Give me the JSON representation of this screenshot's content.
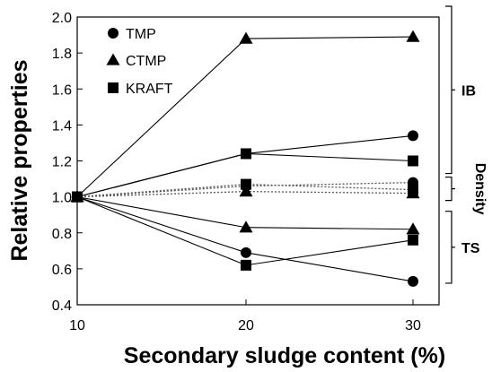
{
  "chart_data": {
    "type": "line",
    "xlabel": "Secondary sludge content (%)",
    "ylabel": "Relative properties",
    "xlim": [
      10,
      30
    ],
    "ylim": [
      0.4,
      2.0
    ],
    "x_ticks": [
      "10",
      "20",
      "30"
    ],
    "y_ticks": [
      "0.4",
      "0.6",
      "0.8",
      "1.0",
      "1.2",
      "1.4",
      "1.6",
      "1.8",
      "2.0"
    ],
    "x": [
      10,
      20,
      30
    ],
    "legend": [
      {
        "label": "TMP",
        "marker": "circle"
      },
      {
        "label": "CTMP",
        "marker": "triangle"
      },
      {
        "label": "KRAFT",
        "marker": "square"
      }
    ],
    "series": [
      {
        "property": "IB",
        "pulp": "TMP",
        "marker": "circle",
        "style": "solid",
        "values": [
          1.0,
          1.24,
          1.34
        ]
      },
      {
        "property": "IB",
        "pulp": "CTMP",
        "marker": "triangle",
        "style": "solid",
        "values": [
          1.0,
          1.88,
          1.89
        ]
      },
      {
        "property": "IB",
        "pulp": "KRAFT",
        "marker": "square",
        "style": "solid",
        "values": [
          1.0,
          1.24,
          1.2
        ]
      },
      {
        "property": "Density",
        "pulp": "TMP",
        "marker": "circle",
        "style": "dotted",
        "values": [
          1.0,
          1.06,
          1.08
        ]
      },
      {
        "property": "Density",
        "pulp": "CTMP",
        "marker": "triangle",
        "style": "dotted",
        "values": [
          1.0,
          1.03,
          1.02
        ]
      },
      {
        "property": "Density",
        "pulp": "KRAFT",
        "marker": "square",
        "style": "dotted",
        "values": [
          1.0,
          1.07,
          1.04
        ]
      },
      {
        "property": "TS",
        "pulp": "TMP",
        "marker": "circle",
        "style": "solid",
        "values": [
          1.0,
          0.69,
          0.53
        ]
      },
      {
        "property": "TS",
        "pulp": "CTMP",
        "marker": "triangle",
        "style": "solid",
        "values": [
          1.0,
          0.83,
          0.82
        ]
      },
      {
        "property": "TS",
        "pulp": "KRAFT",
        "marker": "square",
        "style": "solid",
        "values": [
          1.0,
          0.62,
          0.76
        ]
      }
    ],
    "groups": [
      {
        "label": "IB",
        "range": [
          1.13,
          2.06
        ]
      },
      {
        "label": "Density",
        "range": [
          0.98,
          1.11
        ]
      },
      {
        "label": "TS",
        "range": [
          0.52,
          0.92
        ]
      }
    ],
    "legend_position": "top-left",
    "grid": false
  }
}
